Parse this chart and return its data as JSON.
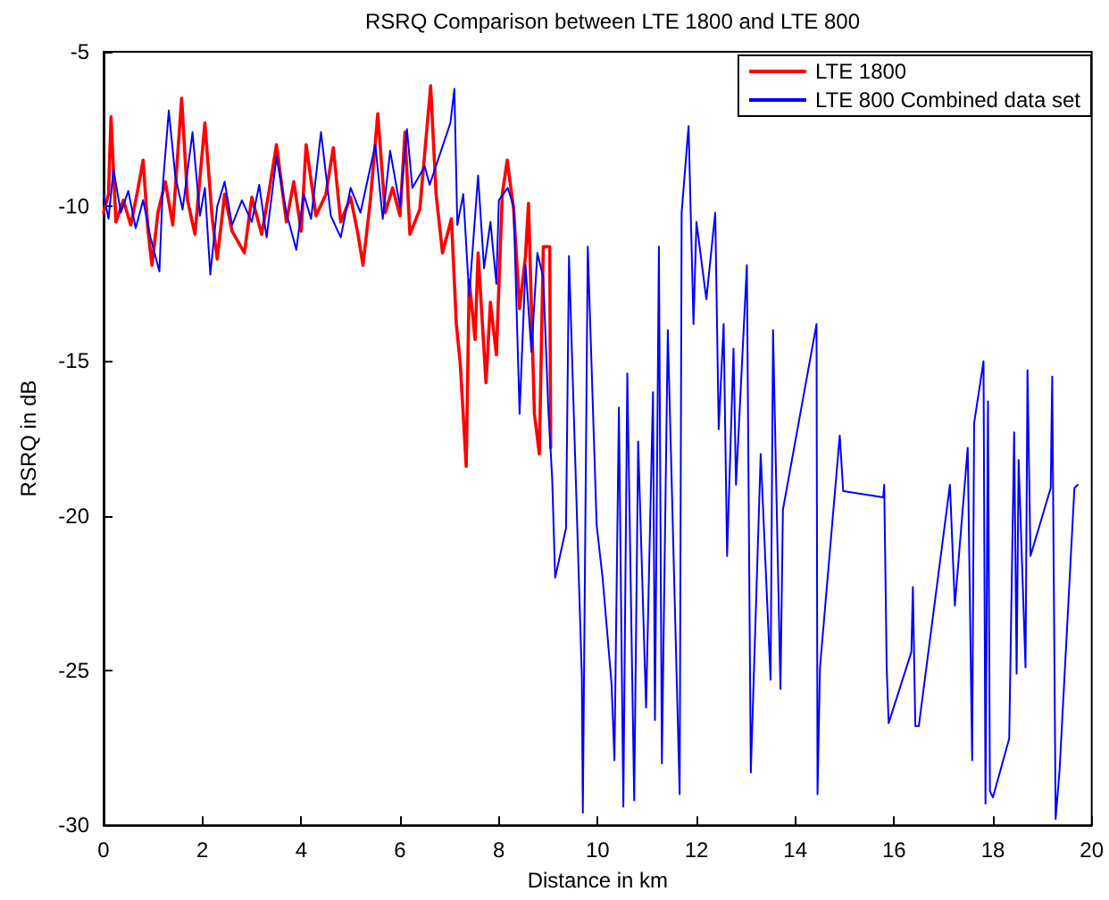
{
  "chart_data": {
    "type": "line",
    "title": "RSRQ Comparison between LTE 1800 and LTE 800",
    "xlabel": "Distance in km",
    "ylabel": "RSRQ in dB",
    "xlim": [
      0,
      20
    ],
    "xticks": [
      0,
      2,
      4,
      6,
      8,
      10,
      12,
      14,
      16,
      18,
      20
    ],
    "ylim": [
      -30,
      -5
    ],
    "yticks": [
      -30,
      -25,
      -20,
      -15,
      -10,
      -5
    ],
    "grid": false,
    "legend": "top right",
    "marker": "none",
    "line_style": "solid",
    "series": [
      {
        "name": "LTE 1800",
        "color": "#ff0000",
        "x": [
          0,
          0.1,
          0.15,
          0.25,
          0.4,
          0.55,
          0.7,
          0.8,
          0.9,
          0.98,
          1.1,
          1.25,
          1.4,
          1.58,
          1.7,
          1.85,
          2.05,
          2.2,
          2.3,
          2.45,
          2.6,
          2.85,
          3.0,
          3.2,
          3.35,
          3.5,
          3.7,
          3.85,
          4.0,
          4.1,
          4.3,
          4.5,
          4.65,
          4.8,
          5.0,
          5.15,
          5.25,
          5.4,
          5.55,
          5.7,
          5.85,
          6.0,
          6.1,
          6.2,
          6.4,
          6.62,
          6.73,
          6.86,
          7.04,
          7.14,
          7.22,
          7.34,
          7.4,
          7.52,
          7.58,
          7.74,
          7.83,
          7.95,
          8.07,
          8.17,
          8.3,
          8.42,
          8.54,
          8.6,
          8.72,
          8.82,
          8.9,
          9.03,
          9.05
        ],
        "values": [
          -10.2,
          -9.6,
          -7.1,
          -10.5,
          -9.8,
          -10.6,
          -9.4,
          -8.5,
          -10.8,
          -11.9,
          -10.2,
          -9.2,
          -10.6,
          -6.5,
          -9.8,
          -10.9,
          -7.3,
          -10.4,
          -11.7,
          -9.6,
          -10.8,
          -11.5,
          -9.7,
          -10.9,
          -9.5,
          -8.0,
          -10.5,
          -9.2,
          -10.8,
          -8.0,
          -10.3,
          -9.6,
          -8.1,
          -10.5,
          -9.7,
          -10.9,
          -11.9,
          -9.8,
          -7.0,
          -10.2,
          -9.4,
          -10.3,
          -7.6,
          -10.9,
          -10.1,
          -6.1,
          -9.6,
          -11.5,
          -10.4,
          -13.8,
          -15.1,
          -18.4,
          -12.4,
          -14.3,
          -11.5,
          -15.7,
          -13.1,
          -14.8,
          -9.6,
          -8.5,
          -10.1,
          -13.3,
          -11.6,
          -9.9,
          -16.7,
          -18.0,
          -11.3,
          -11.3,
          -17.8
        ]
      },
      {
        "name": "LTE 800 Combined data set",
        "color": "#0000ff",
        "x": [
          0,
          0.1,
          0.2,
          0.35,
          0.5,
          0.65,
          0.8,
          0.95,
          1.13,
          1.2,
          1.32,
          1.45,
          1.6,
          1.8,
          1.95,
          2.05,
          2.16,
          2.3,
          2.45,
          2.6,
          2.8,
          3.0,
          3.15,
          3.3,
          3.5,
          3.7,
          3.9,
          4.05,
          4.2,
          4.4,
          4.6,
          4.8,
          5.0,
          5.2,
          5.35,
          5.5,
          5.65,
          5.8,
          6.0,
          6.14,
          6.25,
          6.5,
          6.6,
          7.02,
          7.1,
          7.16,
          7.28,
          7.4,
          7.58,
          7.7,
          7.83,
          7.95,
          8.0,
          8.18,
          8.3,
          8.42,
          8.54,
          8.66,
          8.78,
          8.9,
          9.0,
          9.08,
          9.14,
          9.36,
          9.42,
          9.68,
          9.7,
          9.8,
          9.98,
          10.1,
          10.28,
          10.34,
          10.43,
          10.52,
          10.6,
          10.74,
          10.82,
          10.98,
          11.12,
          11.16,
          11.24,
          11.3,
          11.42,
          11.66,
          11.7,
          11.84,
          11.94,
          12.0,
          12.2,
          12.38,
          12.45,
          12.55,
          12.62,
          12.75,
          12.8,
          13.02,
          13.1,
          13.3,
          13.5,
          13.55,
          13.7,
          13.75,
          14.43,
          14.45,
          14.5,
          14.9,
          14.97,
          15.78,
          15.8,
          15.85,
          15.89,
          16.35,
          16.38,
          16.43,
          16.5,
          17.13,
          17.23,
          17.49,
          17.58,
          17.62,
          17.81,
          17.85,
          17.9,
          17.94,
          18.0,
          18.33,
          18.43,
          18.48,
          18.52,
          18.66,
          18.7,
          18.76,
          19.17,
          19.2,
          19.27,
          19.35,
          19.65,
          19.72
        ],
        "values": [
          -9.6,
          -10.4,
          -8.8,
          -10.2,
          -9.5,
          -10.7,
          -9.8,
          -11.0,
          -12.1,
          -9.3,
          -6.9,
          -9.0,
          -10.1,
          -7.6,
          -10.3,
          -9.4,
          -12.2,
          -10.0,
          -9.2,
          -10.6,
          -9.8,
          -10.5,
          -9.3,
          -11.0,
          -8.4,
          -10.2,
          -11.4,
          -9.6,
          -10.4,
          -7.6,
          -10.3,
          -11.0,
          -9.4,
          -10.2,
          -9.1,
          -8.0,
          -10.4,
          -8.2,
          -10.0,
          -7.5,
          -9.4,
          -8.7,
          -9.3,
          -7.3,
          -6.2,
          -10.6,
          -9.6,
          -12.9,
          -9.0,
          -12.0,
          -10.5,
          -12.5,
          -9.8,
          -9.4,
          -10.0,
          -16.7,
          -11.9,
          -14.7,
          -11.5,
          -12.3,
          -16.5,
          -18.8,
          -22,
          -20.4,
          -11.6,
          -25.2,
          -29.6,
          -11.3,
          -20.3,
          -22,
          -25.4,
          -27.9,
          -16.5,
          -29.4,
          -15.4,
          -29.2,
          -17.6,
          -26.2,
          -16.0,
          -26.6,
          -11.3,
          -28,
          -14,
          -29.0,
          -10.2,
          -7.4,
          -13.8,
          -10.5,
          -13.0,
          -10.2,
          -17.2,
          -13.8,
          -21.3,
          -14.6,
          -19.0,
          -11.9,
          -28.3,
          -18,
          -25.3,
          -14,
          -25.6,
          -19.8,
          -13.8,
          -29.0,
          -24.9,
          -17.4,
          -19.2,
          -19.4,
          -19.0,
          -24.9,
          -26.7,
          -24.4,
          -22.3,
          -26.8,
          -26.8,
          -19.0,
          -22.9,
          -17.8,
          -27.9,
          -17.0,
          -15.0,
          -29.3,
          -16.3,
          -28.9,
          -29.1,
          -27.2,
          -17.3,
          -25.1,
          -18.2,
          -24.9,
          -15.3,
          -21.3,
          -19.1,
          -15.5,
          -29.8,
          -28.2,
          -19.1,
          -19.0
        ]
      }
    ]
  }
}
